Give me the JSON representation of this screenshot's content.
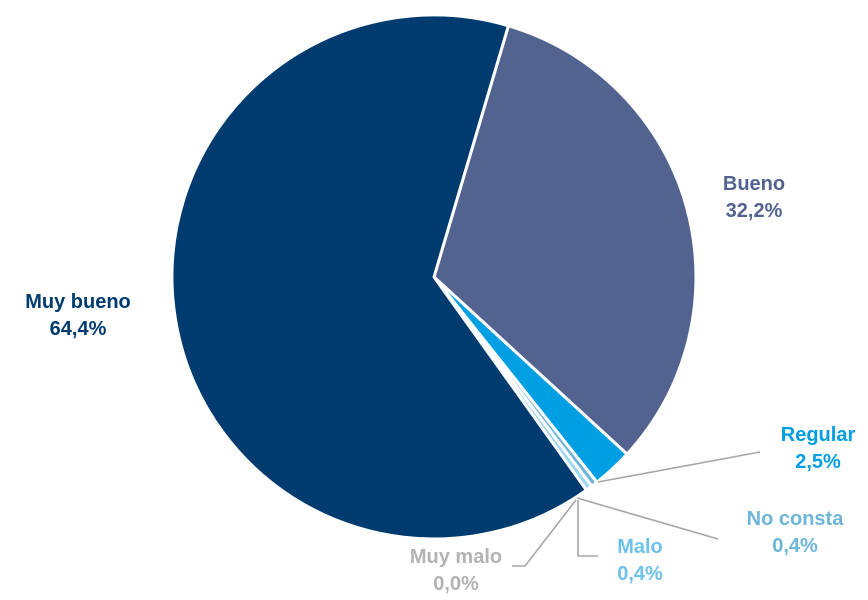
{
  "chart_data": {
    "type": "pie",
    "title": "",
    "slices": [
      {
        "name": "Bueno",
        "value": 32.2,
        "value_label": "32,2%",
        "color": "#52638f",
        "label_color": "#52638f"
      },
      {
        "name": "Regular",
        "value": 2.5,
        "value_label": "2,5%",
        "color": "#009fe3",
        "label_color": "#009fe3"
      },
      {
        "name": "No consta",
        "value": 0.4,
        "value_label": "0,4%",
        "color": "#6cb6d9",
        "label_color": "#6cb6d9"
      },
      {
        "name": "Malo",
        "value": 0.4,
        "value_label": "0,4%",
        "color": "#9dd7f1",
        "label_color": "#6cc2ea"
      },
      {
        "name": "Muy malo",
        "value": 0.0,
        "value_label": "0,0%",
        "color": "#b8b8b8",
        "label_color": "#b3b3b3"
      },
      {
        "name": "Muy bueno",
        "value": 64.4,
        "value_label": "64,4%",
        "color": "#003b6f",
        "label_color": "#003b6f"
      }
    ],
    "start_angle_deg": 16.5,
    "direction": "clockwise",
    "legend": "none",
    "leader_line_color": "#a6a6a6"
  }
}
